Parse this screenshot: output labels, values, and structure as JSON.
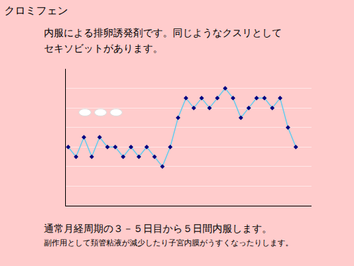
{
  "chart_data": {
    "type": "line",
    "title": "クロミフェン",
    "subtitle": [
      "内服による排卵誘発剤です。同じようなクスリとして",
      "セキソビットがあります。"
    ],
    "annotations": [
      "通常月経周期の３－５日目から５日間内服します。",
      "副作用として頚管粘液が減少したり子宮内膜がうすくなったりします。"
    ],
    "x": [
      1,
      2,
      3,
      4,
      5,
      6,
      7,
      8,
      9,
      10,
      11,
      12,
      13,
      14,
      15,
      16,
      17,
      18,
      19,
      20,
      21,
      22,
      23,
      24,
      25,
      26,
      27,
      28,
      29,
      30
    ],
    "values": [
      3,
      2.5,
      3.5,
      2.5,
      3.5,
      3,
      3,
      2.5,
      3,
      2.5,
      3,
      2.5,
      2,
      3,
      4.5,
      5.5,
      5,
      5.5,
      5,
      5.5,
      6,
      5.5,
      4.5,
      5,
      5.5,
      5.5,
      5,
      5.5,
      4,
      3
    ],
    "color": "#66ccee",
    "marker": "diamond",
    "xlim": [
      0.7,
      32
    ],
    "ylim": [
      0,
      7
    ],
    "yticks": [
      1,
      2,
      3,
      4,
      5,
      6,
      7
    ],
    "grid": true,
    "tick_labels": false
  }
}
